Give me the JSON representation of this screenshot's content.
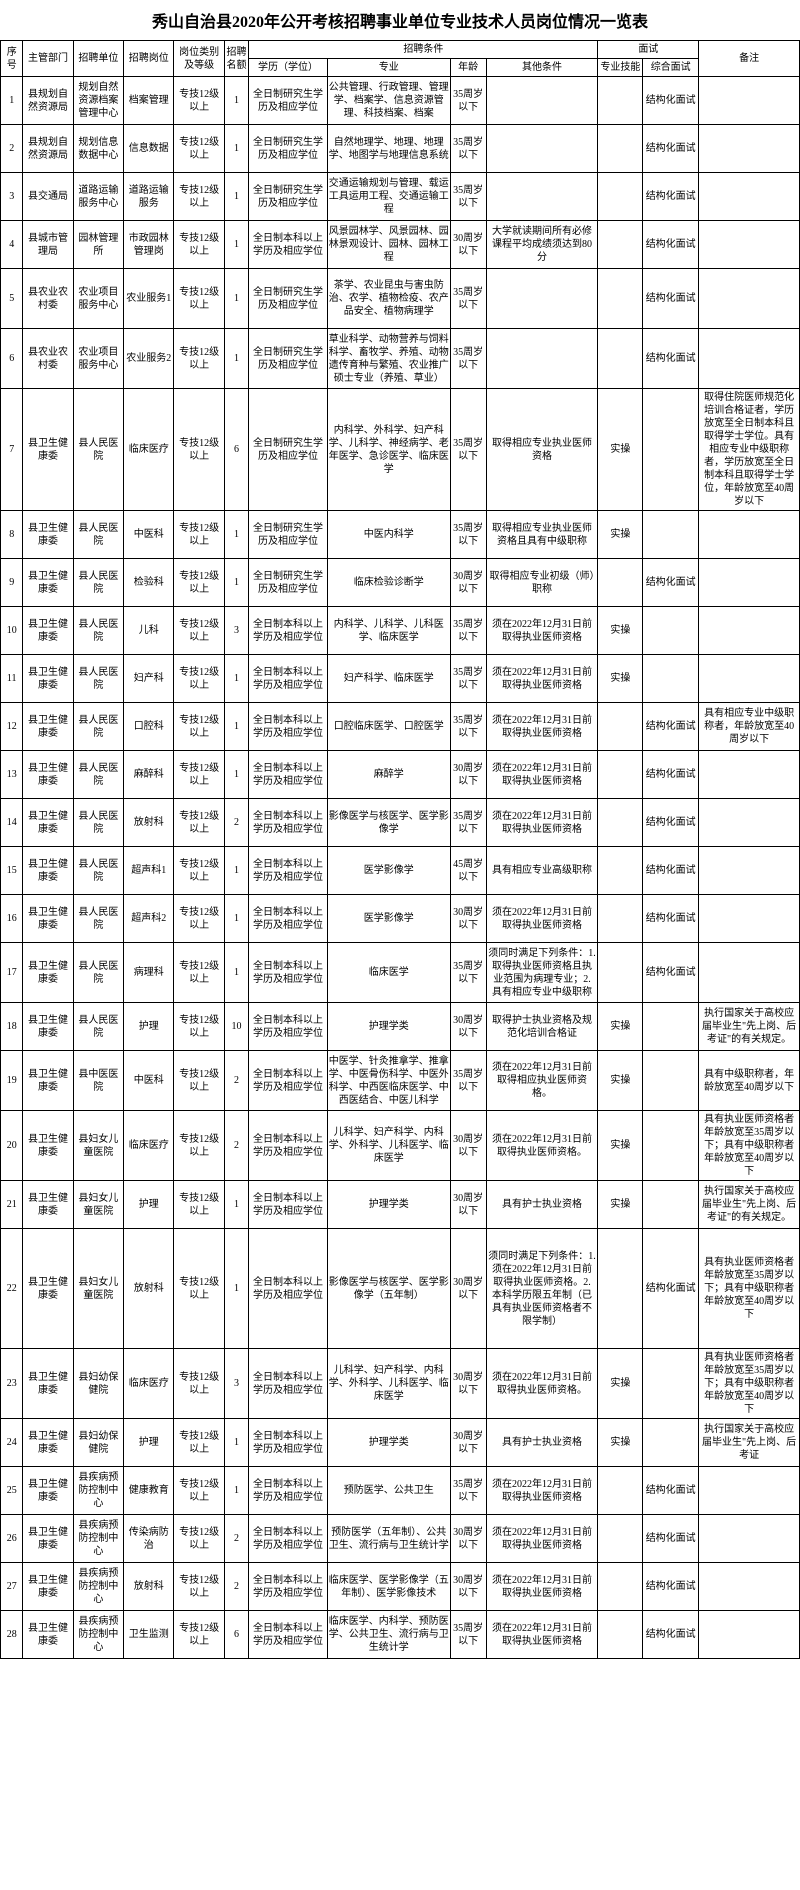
{
  "title": "秀山自治县2020年公开考核招聘事业单位专业技术人员岗位情况一览表",
  "headers": {
    "seq": "序号",
    "dept": "主管部门",
    "unit": "招聘单位",
    "pos": "招聘岗位",
    "level": "岗位类别及等级",
    "num": "招聘名额",
    "conditions": "招聘条件",
    "edu": "学历（学位）",
    "major": "专业",
    "age": "年龄",
    "other": "其他条件",
    "interview": "面试",
    "skill": "专业技能",
    "comp": "综合面试",
    "remark": "备注"
  },
  "rows": [
    {
      "seq": "1",
      "dept": "县规划自然资源局",
      "unit": "规划自然资源档案管理中心",
      "pos": "档案管理",
      "level": "专技12级以上",
      "num": "1",
      "edu": "全日制研究生学历及相应学位",
      "major": "公共管理、行政管理、管理学、档案学、信息资源管理、科技档案、档案",
      "age": "35周岁以下",
      "other": "",
      "skill": "",
      "comp": "结构化面试",
      "remark": ""
    },
    {
      "seq": "2",
      "dept": "县规划自然资源局",
      "unit": "规划信息数据中心",
      "pos": "信息数据",
      "level": "专技12级以上",
      "num": "1",
      "edu": "全日制研究生学历及相应学位",
      "major": "自然地理学、地理、地理学、地图学与地理信息系统",
      "age": "35周岁以下",
      "other": "",
      "skill": "",
      "comp": "结构化面试",
      "remark": ""
    },
    {
      "seq": "3",
      "dept": "县交通局",
      "unit": "道路运输服务中心",
      "pos": "道路运输服务",
      "level": "专技12级以上",
      "num": "1",
      "edu": "全日制研究生学历及相应学位",
      "major": "交通运输规划与管理、载运工具运用工程、交通运输工程",
      "age": "35周岁以下",
      "other": "",
      "skill": "",
      "comp": "结构化面试",
      "remark": ""
    },
    {
      "seq": "4",
      "dept": "县城市管理局",
      "unit": "园林管理所",
      "pos": "市政园林管理岗",
      "level": "专技12级以上",
      "num": "1",
      "edu": "全日制本科以上学历及相应学位",
      "major": "风景园林学、风景园林、园林景观设计、园林、园林工程",
      "age": "30周岁以下",
      "other": "大学就读期间所有必修课程平均成绩须达到80分",
      "skill": "",
      "comp": "结构化面试",
      "remark": ""
    },
    {
      "seq": "5",
      "dept": "县农业农村委",
      "unit": "农业项目服务中心",
      "pos": "农业服务1",
      "level": "专技12级以上",
      "num": "1",
      "edu": "全日制研究生学历及相应学位",
      "major": "茶学、农业昆虫与害虫防治、农学、植物检疫、农产品安全、植物病理学",
      "age": "35周岁以下",
      "other": "",
      "skill": "",
      "comp": "结构化面试",
      "remark": ""
    },
    {
      "seq": "6",
      "dept": "县农业农村委",
      "unit": "农业项目服务中心",
      "pos": "农业服务2",
      "level": "专技12级以上",
      "num": "1",
      "edu": "全日制研究生学历及相应学位",
      "major": "草业科学、动物营养与饲料科学、畜牧学、养殖、动物遗传育种与繁殖、农业推广硕士专业（养殖、草业）",
      "age": "35周岁以下",
      "other": "",
      "skill": "",
      "comp": "结构化面试",
      "remark": ""
    },
    {
      "seq": "7",
      "dept": "县卫生健康委",
      "unit": "县人民医院",
      "pos": "临床医疗",
      "level": "专技12级以上",
      "num": "6",
      "edu": "全日制研究生学历及相应学位",
      "major": "内科学、外科学、妇产科学、儿科学、神经病学、老年医学、急诊医学、临床医学",
      "age": "35周岁以下",
      "other": "取得相应专业执业医师资格",
      "skill": "实操",
      "comp": "",
      "remark": "取得住院医师规范化培训合格证者，学历放宽至全日制本科且取得学士学位。具有相应专业中级职称者，学历放宽至全日制本科且取得学士学位，年龄放宽至40周岁以下"
    },
    {
      "seq": "8",
      "dept": "县卫生健康委",
      "unit": "县人民医院",
      "pos": "中医科",
      "level": "专技12级以上",
      "num": "1",
      "edu": "全日制研究生学历及相应学位",
      "major": "中医内科学",
      "age": "35周岁以下",
      "other": "取得相应专业执业医师资格且具有中级职称",
      "skill": "实操",
      "comp": "",
      "remark": ""
    },
    {
      "seq": "9",
      "dept": "县卫生健康委",
      "unit": "县人民医院",
      "pos": "检验科",
      "level": "专技12级以上",
      "num": "1",
      "edu": "全日制研究生学历及相应学位",
      "major": "临床检验诊断学",
      "age": "30周岁以下",
      "other": "取得相应专业初级（师）职称",
      "skill": "",
      "comp": "结构化面试",
      "remark": ""
    },
    {
      "seq": "10",
      "dept": "县卫生健康委",
      "unit": "县人民医院",
      "pos": "儿科",
      "level": "专技12级以上",
      "num": "3",
      "edu": "全日制本科以上学历及相应学位",
      "major": "内科学、儿科学、儿科医学、临床医学",
      "age": "35周岁以下",
      "other": "须在2022年12月31日前取得执业医师资格",
      "skill": "实操",
      "comp": "",
      "remark": ""
    },
    {
      "seq": "11",
      "dept": "县卫生健康委",
      "unit": "县人民医院",
      "pos": "妇产科",
      "level": "专技12级以上",
      "num": "1",
      "edu": "全日制本科以上学历及相应学位",
      "major": "妇产科学、临床医学",
      "age": "35周岁以下",
      "other": "须在2022年12月31日前取得执业医师资格",
      "skill": "实操",
      "comp": "",
      "remark": ""
    },
    {
      "seq": "12",
      "dept": "县卫生健康委",
      "unit": "县人民医院",
      "pos": "口腔科",
      "level": "专技12级以上",
      "num": "1",
      "edu": "全日制本科以上学历及相应学位",
      "major": "口腔临床医学、口腔医学",
      "age": "35周岁以下",
      "other": "须在2022年12月31日前取得执业医师资格",
      "skill": "",
      "comp": "结构化面试",
      "remark": "具有相应专业中级职称者，年龄放宽至40周岁以下"
    },
    {
      "seq": "13",
      "dept": "县卫生健康委",
      "unit": "县人民医院",
      "pos": "麻醉科",
      "level": "专技12级以上",
      "num": "1",
      "edu": "全日制本科以上学历及相应学位",
      "major": "麻醉学",
      "age": "30周岁以下",
      "other": "须在2022年12月31日前取得执业医师资格",
      "skill": "",
      "comp": "结构化面试",
      "remark": ""
    },
    {
      "seq": "14",
      "dept": "县卫生健康委",
      "unit": "县人民医院",
      "pos": "放射科",
      "level": "专技12级以上",
      "num": "2",
      "edu": "全日制本科以上学历及相应学位",
      "major": "影像医学与核医学、医学影像学",
      "age": "35周岁以下",
      "other": "须在2022年12月31日前取得执业医师资格",
      "skill": "",
      "comp": "结构化面试",
      "remark": ""
    },
    {
      "seq": "15",
      "dept": "县卫生健康委",
      "unit": "县人民医院",
      "pos": "超声科1",
      "level": "专技12级以上",
      "num": "1",
      "edu": "全日制本科以上学历及相应学位",
      "major": "医学影像学",
      "age": "45周岁以下",
      "other": "具有相应专业高级职称",
      "skill": "",
      "comp": "结构化面试",
      "remark": ""
    },
    {
      "seq": "16",
      "dept": "县卫生健康委",
      "unit": "县人民医院",
      "pos": "超声科2",
      "level": "专技12级以上",
      "num": "1",
      "edu": "全日制本科以上学历及相应学位",
      "major": "医学影像学",
      "age": "30周岁以下",
      "other": "须在2022年12月31日前取得执业医师资格",
      "skill": "",
      "comp": "结构化面试",
      "remark": ""
    },
    {
      "seq": "17",
      "dept": "县卫生健康委",
      "unit": "县人民医院",
      "pos": "病理科",
      "level": "专技12级以上",
      "num": "1",
      "edu": "全日制本科以上学历及相应学位",
      "major": "临床医学",
      "age": "35周岁以下",
      "other": "须同时满足下列条件：1. 取得执业医师资格且执业范围为病理专业；2. 具有相应专业中级职称",
      "skill": "",
      "comp": "结构化面试",
      "remark": ""
    },
    {
      "seq": "18",
      "dept": "县卫生健康委",
      "unit": "县人民医院",
      "pos": "护理",
      "level": "专技12级以上",
      "num": "10",
      "edu": "全日制本科以上学历及相应学位",
      "major": "护理学类",
      "age": "30周岁以下",
      "other": "取得护士执业资格及规范化培训合格证",
      "skill": "实操",
      "comp": "",
      "remark": "执行国家关于高校应届毕业生\"先上岗、后考证\"的有关规定。"
    },
    {
      "seq": "19",
      "dept": "县卫生健康委",
      "unit": "县中医医院",
      "pos": "中医科",
      "level": "专技12级以上",
      "num": "2",
      "edu": "全日制本科以上学历及相应学位",
      "major": "中医学、针灸推拿学、推拿学、中医骨伤科学、中医外科学、中西医临床医学、中西医结合、中医儿科学",
      "age": "35周岁以下",
      "other": "须在2022年12月31日前取得相应执业医师资格。",
      "skill": "实操",
      "comp": "",
      "remark": "具有中级职称者，年龄放宽至40周岁以下"
    },
    {
      "seq": "20",
      "dept": "县卫生健康委",
      "unit": "县妇女儿童医院",
      "pos": "临床医疗",
      "level": "专技12级以上",
      "num": "2",
      "edu": "全日制本科以上学历及相应学位",
      "major": "儿科学、妇产科学、内科学、外科学、儿科医学、临床医学",
      "age": "30周岁以下",
      "other": "须在2022年12月31日前取得执业医师资格。",
      "skill": "实操",
      "comp": "",
      "remark": "具有执业医师资格者年龄放宽至35周岁以下；具有中级职称者年龄放宽至40周岁以下"
    },
    {
      "seq": "21",
      "dept": "县卫生健康委",
      "unit": "县妇女儿童医院",
      "pos": "护理",
      "level": "专技12级以上",
      "num": "1",
      "edu": "全日制本科以上学历及相应学位",
      "major": "护理学类",
      "age": "30周岁以下",
      "other": "具有护士执业资格",
      "skill": "实操",
      "comp": "",
      "remark": "执行国家关于高校应届毕业生\"先上岗、后考证\"的有关规定。"
    },
    {
      "seq": "22",
      "dept": "县卫生健康委",
      "unit": "县妇女儿童医院",
      "pos": "放射科",
      "level": "专技12级以上",
      "num": "1",
      "edu": "全日制本科以上学历及相应学位",
      "major": "影像医学与核医学、医学影像学（五年制）",
      "age": "30周岁以下",
      "other": "须同时满足下列条件：1. 须在2022年12月31日前取得执业医师资格。2. 本科学历限五年制（已具有执业医师资格者不限学制）",
      "skill": "",
      "comp": "结构化面试",
      "remark": "具有执业医师资格者年龄放宽至35周岁以下；具有中级职称者年龄放宽至40周岁以下"
    },
    {
      "seq": "23",
      "dept": "县卫生健康委",
      "unit": "县妇幼保健院",
      "pos": "临床医疗",
      "level": "专技12级以上",
      "num": "3",
      "edu": "全日制本科以上学历及相应学位",
      "major": "儿科学、妇产科学、内科学、外科学、儿科医学、临床医学",
      "age": "30周岁以下",
      "other": "须在2022年12月31日前取得执业医师资格。",
      "skill": "实操",
      "comp": "",
      "remark": "具有执业医师资格者年龄放宽至35周岁以下；具有中级职称者年龄放宽至40周岁以下"
    },
    {
      "seq": "24",
      "dept": "县卫生健康委",
      "unit": "县妇幼保健院",
      "pos": "护理",
      "level": "专技12级以上",
      "num": "1",
      "edu": "全日制本科以上学历及相应学位",
      "major": "护理学类",
      "age": "30周岁以下",
      "other": "具有护士执业资格",
      "skill": "实操",
      "comp": "",
      "remark": "执行国家关于高校应届毕业生\"先上岗、后考证"
    },
    {
      "seq": "25",
      "dept": "县卫生健康委",
      "unit": "县疾病预防控制中心",
      "pos": "健康教育",
      "level": "专技12级以上",
      "num": "1",
      "edu": "全日制本科以上学历及相应学位",
      "major": "预防医学、公共卫生",
      "age": "35周岁以下",
      "other": "须在2022年12月31日前取得执业医师资格",
      "skill": "",
      "comp": "结构化面试",
      "remark": ""
    },
    {
      "seq": "26",
      "dept": "县卫生健康委",
      "unit": "县疾病预防控制中心",
      "pos": "传染病防治",
      "level": "专技12级以上",
      "num": "2",
      "edu": "全日制本科以上学历及相应学位",
      "major": "预防医学（五年制）、公共卫生、流行病与卫生统计学",
      "age": "30周岁以下",
      "other": "须在2022年12月31日前取得执业医师资格",
      "skill": "",
      "comp": "结构化面试",
      "remark": ""
    },
    {
      "seq": "27",
      "dept": "县卫生健康委",
      "unit": "县疾病预防控制中心",
      "pos": "放射科",
      "level": "专技12级以上",
      "num": "2",
      "edu": "全日制本科以上学历及相应学位",
      "major": "临床医学、医学影像学（五年制）、医学影像技术",
      "age": "30周岁以下",
      "other": "须在2022年12月31日前取得执业医师资格",
      "skill": "",
      "comp": "结构化面试",
      "remark": ""
    },
    {
      "seq": "28",
      "dept": "县卫生健康委",
      "unit": "县疾病预防控制中心",
      "pos": "卫生监测",
      "level": "专技12级以上",
      "num": "6",
      "edu": "全日制本科以上学历及相应学位",
      "major": "临床医学、内科学、预防医学、公共卫生、流行病与卫生统计学",
      "age": "35周岁以下",
      "other": "须在2022年12月31日前取得执业医师资格",
      "skill": "",
      "comp": "结构化面试",
      "remark": ""
    }
  ]
}
